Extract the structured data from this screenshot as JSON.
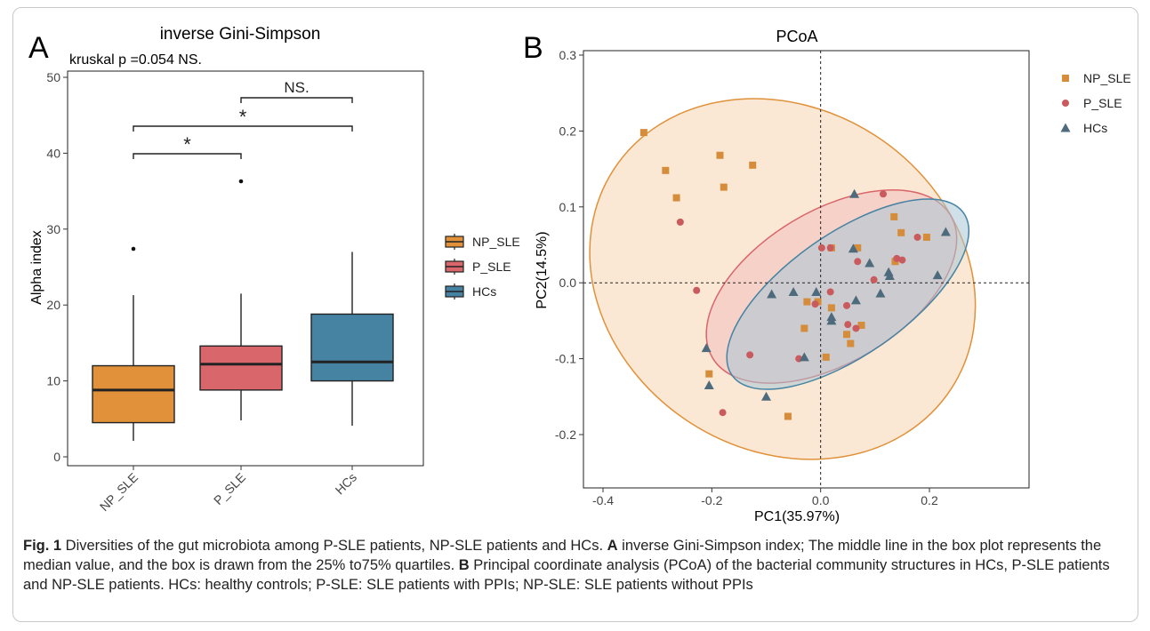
{
  "panel_a": {
    "letter": "A",
    "subtitle": "kruskal p =0.054 NS.",
    "sig": {
      "pair_p_hc": "NS.",
      "pair_np_hc": "*",
      "pair_np_p": "*"
    },
    "legend": [
      "NP_SLE",
      "P_SLE",
      "HCs"
    ]
  },
  "panel_b": {
    "letter": "B",
    "legend": [
      "NP_SLE",
      "P_SLE",
      "HCs"
    ]
  },
  "colors": {
    "np_sle": "#E0913A",
    "p_sle": "#D9666B",
    "hcs": "#4683A3",
    "np_sle_fill": "#F9D9B8",
    "p_sle_fill": "#F2B9BC",
    "hcs_fill": "#A9C7D6",
    "np_sle_point": "#D58D3C",
    "p_sle_point": "#C95A5D",
    "hcs_point": "#4E6B7D"
  },
  "caption": {
    "label": "Fig. 1",
    "text1": "  Diversities of the gut microbiota among P-SLE patients, NP-SLE patients and HCs. ",
    "a": "A",
    "text2": " inverse Gini-Simpson index; The middle line in the box plot represents the median value, and the box is drawn from the 25% to75% quartiles. ",
    "b": "B",
    "text3": " Principal coordinate analysis (PCoA) of the bacterial community structures in HCs, P-SLE patients and NP-SLE patients. HCs: healthy controls; P-SLE: SLE patients with PPIs; NP-SLE: SLE patients without PPIs"
  },
  "chart_data": [
    {
      "type": "box",
      "title": "inverse Gini-Simpson",
      "xlabel": "",
      "ylabel": "Alpha index",
      "ylim": [
        0,
        50
      ],
      "yticks": [
        0,
        10,
        20,
        30,
        40,
        50
      ],
      "categories": [
        "NP_SLE",
        "P_SLE",
        "HCs"
      ],
      "boxes": [
        {
          "name": "NP_SLE",
          "min": 2.1,
          "q1": 4.5,
          "median": 8.8,
          "q3": 12.0,
          "max": 21.3,
          "outliers": [
            27.4
          ]
        },
        {
          "name": "P_SLE",
          "min": 4.8,
          "q1": 8.8,
          "median": 12.2,
          "q3": 14.6,
          "max": 21.5,
          "outliers": [
            36.3
          ]
        },
        {
          "name": "HCs",
          "min": 4.1,
          "q1": 10.0,
          "median": 12.5,
          "q3": 18.8,
          "max": 27.0,
          "outliers": []
        }
      ],
      "legend": "right",
      "grid": false
    },
    {
      "type": "scatter",
      "title": "PCoA",
      "xlabel": "PC1(35.97%)",
      "ylabel": "PC2(14.5%)",
      "xlim": [
        -0.46,
        0.29
      ],
      "ylim": [
        -0.27,
        0.31
      ],
      "xticks": [
        -0.4,
        -0.2,
        0.0,
        0.2
      ],
      "xtick_labels": [
        "-0.4",
        "-0.2",
        "0.0",
        "0.2"
      ],
      "yticks": [
        -0.2,
        -0.1,
        0.0,
        0.1,
        0.2,
        0.3
      ],
      "ytick_labels": [
        "-0.2",
        "-0.1",
        "0.0",
        "0.1",
        "0.2",
        "0.3"
      ],
      "legend": "right",
      "grid": false,
      "series": [
        {
          "name": "NP_SLE",
          "marker": "square",
          "points": [
            [
              -0.325,
              0.198
            ],
            [
              -0.285,
              0.148
            ],
            [
              -0.265,
              0.112
            ],
            [
              -0.185,
              0.168
            ],
            [
              -0.178,
              0.126
            ],
            [
              -0.125,
              0.155
            ],
            [
              0.02,
              0.046
            ],
            [
              0.068,
              0.046
            ],
            [
              0.135,
              0.087
            ],
            [
              0.148,
              0.066
            ],
            [
              0.195,
              0.06
            ],
            [
              0.137,
              0.028
            ],
            [
              -0.025,
              -0.025
            ],
            [
              -0.005,
              -0.025
            ],
            [
              0.02,
              -0.033
            ],
            [
              -0.03,
              -0.06
            ],
            [
              0.048,
              -0.068
            ],
            [
              0.055,
              -0.08
            ],
            [
              0.075,
              -0.056
            ],
            [
              0.01,
              -0.098
            ],
            [
              -0.06,
              -0.176
            ],
            [
              -0.205,
              -0.12
            ]
          ]
        },
        {
          "name": "P_SLE",
          "marker": "circle",
          "points": [
            [
              -0.258,
              0.08
            ],
            [
              -0.228,
              -0.01
            ],
            [
              0.002,
              0.046
            ],
            [
              0.018,
              0.046
            ],
            [
              0.068,
              0.028
            ],
            [
              0.115,
              0.117
            ],
            [
              0.178,
              0.06
            ],
            [
              0.14,
              0.032
            ],
            [
              0.15,
              0.03
            ],
            [
              0.098,
              0.004
            ],
            [
              0.018,
              -0.012
            ],
            [
              -0.01,
              -0.028
            ],
            [
              0.048,
              -0.03
            ],
            [
              0.05,
              -0.055
            ],
            [
              0.065,
              -0.06
            ],
            [
              -0.13,
              -0.095
            ],
            [
              -0.04,
              -0.1
            ],
            [
              -0.18,
              -0.171
            ]
          ]
        },
        {
          "name": "HCs",
          "marker": "triangle",
          "points": [
            [
              0.062,
              0.117
            ],
            [
              0.23,
              0.067
            ],
            [
              0.215,
              0.01
            ],
            [
              0.06,
              0.045
            ],
            [
              0.09,
              0.026
            ],
            [
              0.125,
              0.014
            ],
            [
              0.127,
              0.009
            ],
            [
              0.11,
              -0.014
            ],
            [
              0.065,
              -0.023
            ],
            [
              -0.05,
              -0.012
            ],
            [
              -0.09,
              -0.015
            ],
            [
              -0.008,
              -0.012
            ],
            [
              0.02,
              -0.045
            ],
            [
              0.02,
              -0.05
            ],
            [
              -0.03,
              -0.098
            ],
            [
              -0.21,
              -0.086
            ],
            [
              -0.205,
              -0.135
            ],
            [
              -0.1,
              -0.15
            ]
          ]
        }
      ],
      "ellipses": [
        {
          "name": "NP_SLE",
          "cx": -0.07,
          "cy": 0.005,
          "rx": 0.37,
          "ry": 0.225,
          "angle_deg": -33
        },
        {
          "name": "P_SLE",
          "cx": 0.02,
          "cy": -0.005,
          "rx": 0.255,
          "ry": 0.1,
          "angle_deg": 31
        },
        {
          "name": "HCs",
          "cx": 0.05,
          "cy": -0.015,
          "rx": 0.26,
          "ry": 0.08,
          "angle_deg": 35
        }
      ]
    }
  ]
}
